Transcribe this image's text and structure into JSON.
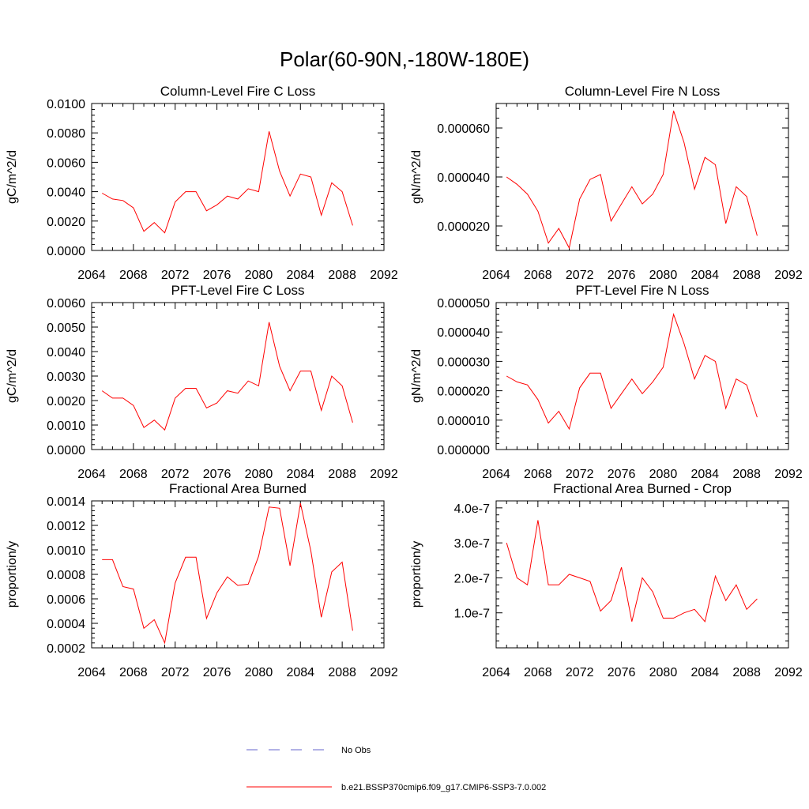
{
  "figure": {
    "title": "Polar(60-90N,-180W-180E)"
  },
  "legend": {
    "entries": [
      {
        "label": "No Obs",
        "color": "#6666cc",
        "style": "dashed"
      },
      {
        "label": "b.e21.BSSP370cmip6.f09_g17.CMIP6-SSP3-7.0.002",
        "color": "#ff0000",
        "style": "solid"
      }
    ]
  },
  "chart_data": [
    {
      "type": "line",
      "title": "Column-Level Fire C Loss",
      "ylabel": "gC/m^2/d",
      "xlim": [
        2064,
        2092
      ],
      "ylim": [
        0.0,
        0.01
      ],
      "x_ticks": [
        2064,
        2068,
        2072,
        2076,
        2080,
        2084,
        2088,
        2092
      ],
      "y_ticks": [
        "0.0000",
        "0.0020",
        "0.0040",
        "0.0060",
        "0.0080",
        "0.0100"
      ],
      "y_tick_values": [
        0.0,
        0.002,
        0.004,
        0.006,
        0.008,
        0.01
      ],
      "x": [
        2065,
        2066,
        2067,
        2068,
        2069,
        2070,
        2071,
        2072,
        2073,
        2074,
        2075,
        2076,
        2077,
        2078,
        2079,
        2080,
        2081,
        2082,
        2083,
        2084,
        2085,
        2086,
        2087,
        2088,
        2089
      ],
      "series": [
        {
          "name": "b.e21.BSSP370cmip6.f09_g17.CMIP6-SSP3-7.0.002",
          "values": [
            0.0039,
            0.0035,
            0.0034,
            0.0029,
            0.0013,
            0.0019,
            0.0012,
            0.0033,
            0.004,
            0.004,
            0.0027,
            0.0031,
            0.0037,
            0.0035,
            0.0042,
            0.004,
            0.0081,
            0.0054,
            0.0037,
            0.0052,
            0.005,
            0.0024,
            0.0046,
            0.004,
            0.0017
          ]
        }
      ]
    },
    {
      "type": "line",
      "title": "Column-Level Fire N Loss",
      "ylabel": "gN/m^2/d",
      "xlim": [
        2064,
        2092
      ],
      "ylim": [
        1e-05,
        7e-05
      ],
      "x_ticks": [
        2064,
        2068,
        2072,
        2076,
        2080,
        2084,
        2088,
        2092
      ],
      "y_ticks": [
        "0.000020",
        "0.000040",
        "0.000060"
      ],
      "y_tick_values": [
        2e-05,
        4e-05,
        6e-05
      ],
      "x": [
        2065,
        2066,
        2067,
        2068,
        2069,
        2070,
        2071,
        2072,
        2073,
        2074,
        2075,
        2076,
        2077,
        2078,
        2079,
        2080,
        2081,
        2082,
        2083,
        2084,
        2085,
        2086,
        2087,
        2088,
        2089
      ],
      "series": [
        {
          "name": "b.e21.BSSP370cmip6.f09_g17.CMIP6-SSP3-7.0.002",
          "values": [
            4e-05,
            3.7e-05,
            3.3e-05,
            2.6e-05,
            1.3e-05,
            1.9e-05,
            1.1e-05,
            3.1e-05,
            3.9e-05,
            4.1e-05,
            2.2e-05,
            2.9e-05,
            3.6e-05,
            2.9e-05,
            3.3e-05,
            4.1e-05,
            6.7e-05,
            5.4e-05,
            3.5e-05,
            4.8e-05,
            4.5e-05,
            2.1e-05,
            3.6e-05,
            3.2e-05,
            1.6e-05
          ]
        }
      ]
    },
    {
      "type": "line",
      "title": "PFT-Level Fire C Loss",
      "ylabel": "gC/m^2/d",
      "xlim": [
        2064,
        2092
      ],
      "ylim": [
        0.0,
        0.006
      ],
      "x_ticks": [
        2064,
        2068,
        2072,
        2076,
        2080,
        2084,
        2088,
        2092
      ],
      "y_ticks": [
        "0.0000",
        "0.0010",
        "0.0020",
        "0.0030",
        "0.0040",
        "0.0050",
        "0.0060"
      ],
      "y_tick_values": [
        0.0,
        0.001,
        0.002,
        0.003,
        0.004,
        0.005,
        0.006
      ],
      "x": [
        2065,
        2066,
        2067,
        2068,
        2069,
        2070,
        2071,
        2072,
        2073,
        2074,
        2075,
        2076,
        2077,
        2078,
        2079,
        2080,
        2081,
        2082,
        2083,
        2084,
        2085,
        2086,
        2087,
        2088,
        2089
      ],
      "series": [
        {
          "name": "b.e21.BSSP370cmip6.f09_g17.CMIP6-SSP3-7.0.002",
          "values": [
            0.0024,
            0.0021,
            0.0021,
            0.0018,
            0.0009,
            0.0012,
            0.0008,
            0.0021,
            0.0025,
            0.0025,
            0.0017,
            0.0019,
            0.0024,
            0.0023,
            0.0028,
            0.0026,
            0.0052,
            0.0034,
            0.0024,
            0.0032,
            0.0032,
            0.0016,
            0.003,
            0.0026,
            0.0011
          ]
        }
      ]
    },
    {
      "type": "line",
      "title": "PFT-Level Fire N Loss",
      "ylabel": "gN/m^2/d",
      "xlim": [
        2064,
        2092
      ],
      "ylim": [
        0.0,
        5e-05
      ],
      "x_ticks": [
        2064,
        2068,
        2072,
        2076,
        2080,
        2084,
        2088,
        2092
      ],
      "y_ticks": [
        "0.000000",
        "0.000010",
        "0.000020",
        "0.000030",
        "0.000040",
        "0.000050"
      ],
      "y_tick_values": [
        0.0,
        1e-05,
        2e-05,
        3e-05,
        4e-05,
        5e-05
      ],
      "x": [
        2065,
        2066,
        2067,
        2068,
        2069,
        2070,
        2071,
        2072,
        2073,
        2074,
        2075,
        2076,
        2077,
        2078,
        2079,
        2080,
        2081,
        2082,
        2083,
        2084,
        2085,
        2086,
        2087,
        2088,
        2089
      ],
      "series": [
        {
          "name": "b.e21.BSSP370cmip6.f09_g17.CMIP6-SSP3-7.0.002",
          "values": [
            2.5e-05,
            2.3e-05,
            2.2e-05,
            1.7e-05,
            9e-06,
            1.3e-05,
            7e-06,
            2.1e-05,
            2.6e-05,
            2.6e-05,
            1.4e-05,
            1.9e-05,
            2.4e-05,
            1.9e-05,
            2.3e-05,
            2.8e-05,
            4.6e-05,
            3.6e-05,
            2.4e-05,
            3.2e-05,
            3e-05,
            1.4e-05,
            2.4e-05,
            2.2e-05,
            1.1e-05
          ]
        }
      ]
    },
    {
      "type": "line",
      "title": "Fractional Area Burned",
      "ylabel": "proportion/y",
      "xlim": [
        2064,
        2092
      ],
      "ylim": [
        0.0002,
        0.0014
      ],
      "x_ticks": [
        2064,
        2068,
        2072,
        2076,
        2080,
        2084,
        2088,
        2092
      ],
      "y_ticks": [
        "0.0002",
        "0.0004",
        "0.0006",
        "0.0008",
        "0.0010",
        "0.0012",
        "0.0014"
      ],
      "y_tick_values": [
        0.0002,
        0.0004,
        0.0006,
        0.0008,
        0.001,
        0.0012,
        0.0014
      ],
      "x": [
        2065,
        2066,
        2067,
        2068,
        2069,
        2070,
        2071,
        2072,
        2073,
        2074,
        2075,
        2076,
        2077,
        2078,
        2079,
        2080,
        2081,
        2082,
        2083,
        2084,
        2085,
        2086,
        2087,
        2088,
        2089
      ],
      "series": [
        {
          "name": "b.e21.BSSP370cmip6.f09_g17.CMIP6-SSP3-7.0.002",
          "values": [
            0.00092,
            0.00092,
            0.0007,
            0.00068,
            0.00036,
            0.00043,
            0.00024,
            0.00073,
            0.00094,
            0.00094,
            0.00044,
            0.00065,
            0.00078,
            0.00071,
            0.00072,
            0.00095,
            0.00135,
            0.00134,
            0.00087,
            0.00138,
            0.00099,
            0.00045,
            0.00082,
            0.0009,
            0.00034
          ]
        }
      ]
    },
    {
      "type": "line",
      "title": "Fractional Area Burned - Crop",
      "ylabel": "proportion/y",
      "xlim": [
        2064,
        2092
      ],
      "ylim": [
        0.0,
        4.2e-07
      ],
      "x_ticks": [
        2064,
        2068,
        2072,
        2076,
        2080,
        2084,
        2088,
        2092
      ],
      "y_ticks": [
        "1.0e-7",
        "2.0e-7",
        "3.0e-7",
        "4.0e-7"
      ],
      "y_tick_values": [
        1e-07,
        2e-07,
        3e-07,
        4e-07
      ],
      "x": [
        2065,
        2066,
        2067,
        2068,
        2069,
        2070,
        2071,
        2072,
        2073,
        2074,
        2075,
        2076,
        2077,
        2078,
        2079,
        2080,
        2081,
        2082,
        2083,
        2084,
        2085,
        2086,
        2087,
        2088,
        2089
      ],
      "series": [
        {
          "name": "b.e21.BSSP370cmip6.f09_g17.CMIP6-SSP3-7.0.002",
          "values": [
            3e-07,
            2e-07,
            1.8e-07,
            3.65e-07,
            1.8e-07,
            1.8e-07,
            2.1e-07,
            2e-07,
            1.9e-07,
            1.05e-07,
            1.35e-07,
            2.3e-07,
            7.5e-08,
            2e-07,
            1.6e-07,
            8.5e-08,
            8.5e-08,
            1e-07,
            1.1e-07,
            7.5e-08,
            2.05e-07,
            1.35e-07,
            1.8e-07,
            1.1e-07,
            1.4e-07
          ]
        }
      ]
    }
  ]
}
